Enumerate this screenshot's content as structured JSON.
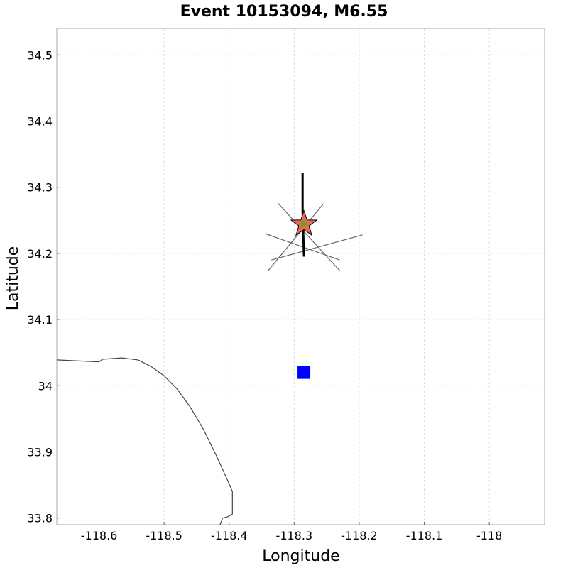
{
  "chart_data": {
    "type": "scatter",
    "title": "Event 10153094, M6.55",
    "xlabel": "Longitude",
    "ylabel": "Latitude",
    "xlim": [
      -118.665,
      -117.915
    ],
    "ylim": [
      33.79,
      34.54
    ],
    "grid": true,
    "x_ticks": [
      {
        "value": -118.6,
        "label": "-118.6"
      },
      {
        "value": -118.5,
        "label": "-118.5"
      },
      {
        "value": -118.4,
        "label": "-118.4"
      },
      {
        "value": -118.3,
        "label": "-118.3"
      },
      {
        "value": -118.2,
        "label": "-118.2"
      },
      {
        "value": -118.1,
        "label": "-118.1"
      },
      {
        "value": -118.0,
        "label": "-118"
      }
    ],
    "y_ticks": [
      {
        "value": 33.8,
        "label": "33.8"
      },
      {
        "value": 33.9,
        "label": "33.9"
      },
      {
        "value": 34.0,
        "label": "34"
      },
      {
        "value": 34.1,
        "label": "34.1"
      },
      {
        "value": 34.2,
        "label": "34.2"
      },
      {
        "value": 34.3,
        "label": "34.3"
      },
      {
        "value": 34.4,
        "label": "34.4"
      },
      {
        "value": 34.5,
        "label": "34.5"
      }
    ],
    "coastline": [
      [
        -118.665,
        34.039
      ],
      [
        -118.6,
        34.036
      ],
      [
        -118.595,
        34.04
      ],
      [
        -118.565,
        34.042
      ],
      [
        -118.54,
        34.039
      ],
      [
        -118.52,
        34.029
      ],
      [
        -118.5,
        34.015
      ],
      [
        -118.48,
        33.995
      ],
      [
        -118.46,
        33.968
      ],
      [
        -118.44,
        33.935
      ],
      [
        -118.42,
        33.895
      ],
      [
        -118.4,
        33.852
      ],
      [
        -118.395,
        33.84
      ],
      [
        -118.395,
        33.806
      ],
      [
        -118.402,
        33.802
      ],
      [
        -118.41,
        33.8
      ],
      [
        -118.414,
        33.79
      ]
    ],
    "fault_trace": [
      [
        -118.287,
        34.322
      ],
      [
        -118.287,
        34.264
      ],
      [
        -118.285,
        34.195
      ]
    ],
    "rupture_lines": [
      [
        [
          -118.345,
          34.23
        ],
        [
          -118.23,
          34.19
        ]
      ],
      [
        [
          -118.335,
          34.19
        ],
        [
          -118.195,
          34.228
        ]
      ],
      [
        [
          -118.325,
          34.276
        ],
        [
          -118.23,
          34.174
        ]
      ],
      [
        [
          -118.34,
          34.174
        ],
        [
          -118.255,
          34.275
        ]
      ]
    ],
    "epicenter": {
      "lon": -118.285,
      "lat": 34.244,
      "color": "#e86a55"
    },
    "hypocenter": {
      "lon": -118.285,
      "lat": 34.245,
      "color": "#7a9a2a"
    },
    "station": {
      "lon": -118.285,
      "lat": 34.02,
      "color": "#0000ff"
    }
  }
}
